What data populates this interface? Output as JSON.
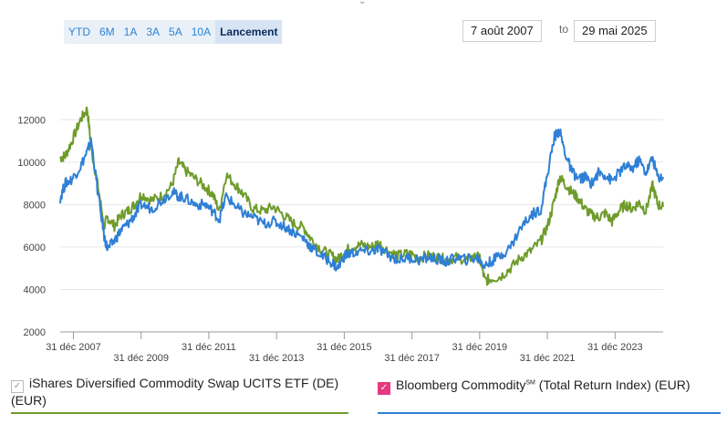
{
  "range_buttons": [
    "YTD",
    "6M",
    "1A",
    "3A",
    "5A",
    "10A",
    "Lancement"
  ],
  "active_range": "Lancement",
  "date_from": "7 août 2007",
  "date_to_label": "to",
  "date_to": "29 mai 2025",
  "legend": {
    "etf_label": "iShares Diversified Commodity Swap UCITS ETF (DE) (EUR)",
    "index_label_main": "Bloomberg Commodity",
    "index_label_sup": "SM",
    "index_label_tail": " (Total Return Index) (EUR)",
    "etf_color": "#6f9b2b",
    "index_color": "#2f7fd6",
    "index_checkbox_color": "#e6397f"
  },
  "chart_data": {
    "type": "line",
    "ylim": [
      2000,
      13000
    ],
    "yticks": [
      2000,
      4000,
      6000,
      8000,
      10000,
      12000
    ],
    "xlim": [
      2007.6,
      2025.41
    ],
    "xticks": [
      {
        "x": 2007.99,
        "label": "31 déc 2007"
      },
      {
        "x": 2009.99,
        "label": "31 déc 2009"
      },
      {
        "x": 2011.99,
        "label": "31 déc 2011"
      },
      {
        "x": 2013.99,
        "label": "31 déc 2013"
      },
      {
        "x": 2015.99,
        "label": "31 déc 2015"
      },
      {
        "x": 2017.99,
        "label": "31 déc 2017"
      },
      {
        "x": 2019.99,
        "label": "31 déc 2019"
      },
      {
        "x": 2021.99,
        "label": "31 déc 2021"
      },
      {
        "x": 2023.99,
        "label": "31 déc 2023"
      }
    ],
    "series": [
      {
        "name": "iShares Diversified Commodity Swap UCITS ETF (DE) (EUR)",
        "color": "#6f9b2b",
        "x": [
          2007.6,
          2007.75,
          2007.95,
          2008.2,
          2008.4,
          2008.52,
          2008.7,
          2008.9,
          2009.0,
          2009.2,
          2009.4,
          2009.6,
          2009.8,
          2010.0,
          2010.3,
          2010.6,
          2010.9,
          2011.1,
          2011.3,
          2011.6,
          2011.9,
          2012.1,
          2012.3,
          2012.5,
          2012.8,
          2013.0,
          2013.3,
          2013.6,
          2013.9,
          2014.2,
          2014.5,
          2014.8,
          2015.0,
          2015.3,
          2015.6,
          2015.8,
          2016.0,
          2016.2,
          2016.5,
          2016.8,
          2017.0,
          2017.3,
          2017.6,
          2017.9,
          2018.2,
          2018.5,
          2018.8,
          2019.0,
          2019.3,
          2019.6,
          2019.9,
          2020.0,
          2020.15,
          2020.3,
          2020.6,
          2020.9,
          2021.2,
          2021.5,
          2021.8,
          2022.0,
          2022.2,
          2022.35,
          2022.5,
          2022.7,
          2022.9,
          2023.1,
          2023.3,
          2023.5,
          2023.7,
          2023.9,
          2024.1,
          2024.3,
          2024.5,
          2024.7,
          2024.9,
          2025.1,
          2025.25,
          2025.41
        ],
        "y": [
          10200,
          10300,
          11000,
          12000,
          12500,
          10600,
          9000,
          7000,
          7400,
          7000,
          7500,
          7700,
          8000,
          8500,
          8200,
          8400,
          8900,
          10000,
          9600,
          9200,
          8800,
          8500,
          7700,
          9400,
          8900,
          8500,
          7800,
          7700,
          7900,
          7500,
          7100,
          6900,
          6400,
          5900,
          5600,
          5400,
          5800,
          6000,
          6100,
          6000,
          6200,
          5800,
          5600,
          5700,
          5500,
          5600,
          5500,
          5400,
          5500,
          5400,
          5600,
          5400,
          4400,
          4500,
          4600,
          5000,
          5500,
          5800,
          6300,
          7000,
          8200,
          9300,
          9000,
          8600,
          8300,
          7800,
          7500,
          7400,
          7600,
          7200,
          7700,
          8000,
          7800,
          8100,
          7700,
          8900,
          8000,
          7900
        ]
      },
      {
        "name": "Bloomberg Commodity (Total Return Index) (EUR)",
        "color": "#2f7fd6",
        "x": [
          2007.6,
          2007.75,
          2007.95,
          2008.2,
          2008.4,
          2008.52,
          2008.7,
          2008.9,
          2009.0,
          2009.2,
          2009.4,
          2009.6,
          2009.8,
          2010.0,
          2010.3,
          2010.6,
          2010.9,
          2011.1,
          2011.3,
          2011.6,
          2011.9,
          2012.1,
          2012.3,
          2012.5,
          2012.8,
          2013.0,
          2013.3,
          2013.6,
          2013.9,
          2014.2,
          2014.5,
          2014.8,
          2015.0,
          2015.3,
          2015.6,
          2015.8,
          2016.0,
          2016.2,
          2016.5,
          2016.8,
          2017.0,
          2017.3,
          2017.6,
          2017.9,
          2018.2,
          2018.5,
          2018.8,
          2019.0,
          2019.3,
          2019.6,
          2019.9,
          2020.0,
          2020.15,
          2020.3,
          2020.6,
          2020.9,
          2021.2,
          2021.5,
          2021.8,
          2022.0,
          2022.2,
          2022.35,
          2022.5,
          2022.7,
          2022.9,
          2023.1,
          2023.3,
          2023.5,
          2023.7,
          2023.9,
          2024.1,
          2024.3,
          2024.5,
          2024.7,
          2024.9,
          2025.1,
          2025.25,
          2025.41
        ],
        "y": [
          8300,
          9000,
          9200,
          9800,
          10500,
          11000,
          8700,
          6500,
          5900,
          6300,
          6800,
          7100,
          7500,
          8000,
          7800,
          8200,
          8600,
          8400,
          8300,
          8000,
          8000,
          7700,
          7300,
          8400,
          7900,
          7600,
          7400,
          7100,
          7200,
          7000,
          6700,
          6400,
          6000,
          5600,
          5300,
          5000,
          5600,
          5700,
          5800,
          5800,
          5900,
          5600,
          5400,
          5500,
          5400,
          5500,
          5400,
          5300,
          5500,
          5400,
          5500,
          5400,
          5100,
          5300,
          5600,
          6000,
          6900,
          7500,
          7800,
          9500,
          11200,
          11500,
          10500,
          9600,
          9200,
          9300,
          9000,
          9500,
          9400,
          9100,
          9500,
          9800,
          9700,
          10100,
          9500,
          10200,
          9300,
          9300
        ]
      }
    ]
  }
}
